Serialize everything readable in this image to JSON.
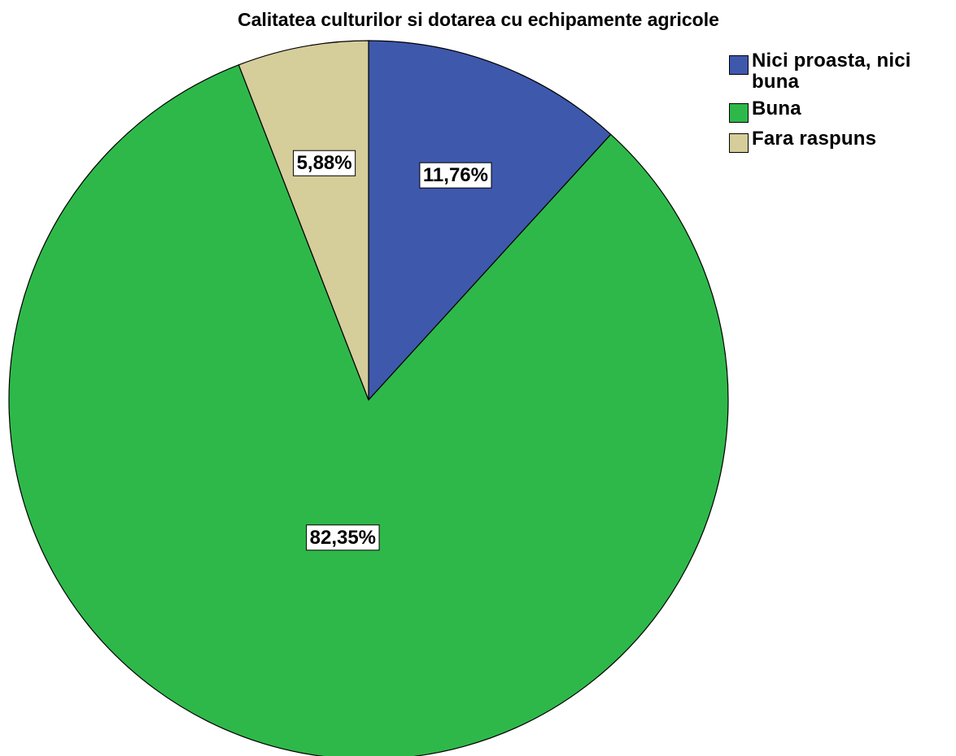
{
  "chart_data": {
    "type": "pie",
    "title": "Calitatea culturilor si dotarea cu echipamente agricole",
    "categories": [
      "Nici proasta, nici buna",
      "Buna",
      "Fara raspuns"
    ],
    "values": [
      11.76,
      82.35,
      5.88
    ],
    "value_labels": [
      "11,76%",
      "82,35%",
      "5,88%"
    ],
    "colors": [
      "#3e58ac",
      "#2fb84a",
      "#d5cd9a"
    ],
    "legend": "top-right"
  }
}
